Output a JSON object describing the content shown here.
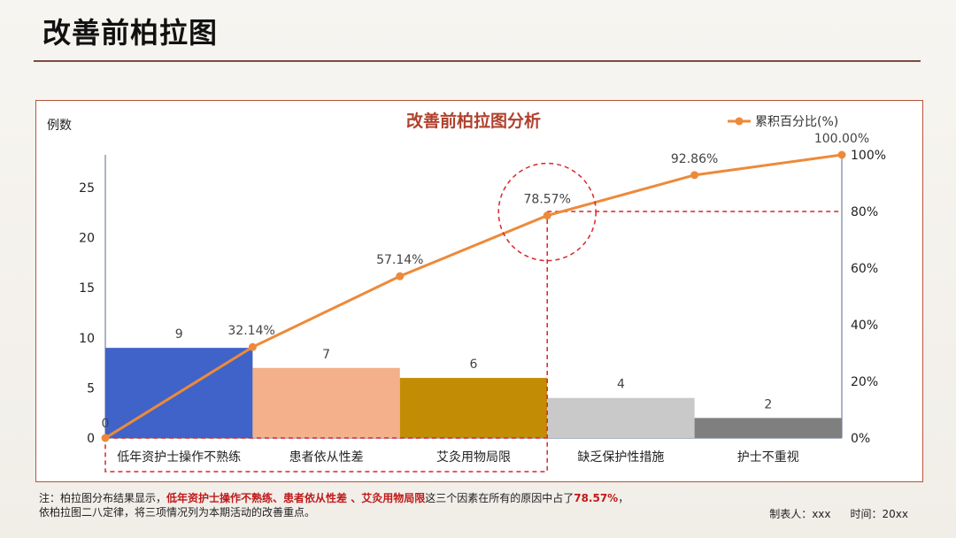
{
  "page": {
    "title": "改善前柏拉图"
  },
  "chart_data": {
    "type": "bar+line",
    "title": "改善前柏拉图分析",
    "ylabel_left": "例数",
    "categories": [
      "低年资护士操作不熟练",
      "患者依从性差",
      "艾灸用物局限",
      "缺乏保护性措施",
      "护士不重视"
    ],
    "values": [
      9,
      7,
      6,
      4,
      2
    ],
    "bar_colors": [
      "#3f63c8",
      "#f3b08a",
      "#c28d04",
      "#c9c9c9",
      "#7f7f7f"
    ],
    "cumulative": {
      "name": "累积百分比(%)",
      "color": "#ed8a3a",
      "x_labels": [
        "0",
        "32.14%",
        "57.14%",
        "78.57%",
        "92.86%",
        "100.00%"
      ],
      "values": [
        0,
        32.14,
        57.14,
        78.57,
        92.86,
        100.0
      ]
    },
    "ylim_left": [
      0,
      28
    ],
    "yticks_left": [
      "0",
      "5",
      "10",
      "15",
      "20",
      "25"
    ],
    "ylim_right": [
      0,
      100
    ],
    "yticks_right": [
      "0%",
      "20%",
      "40%",
      "60%",
      "80%",
      "100%"
    ],
    "reference_line": {
      "value": 80
    },
    "legend_position": "top-right"
  },
  "note": {
    "prefix": "注：柏拉图分布结果显示，",
    "highlight": "低年资护士操作不熟练、患者依从性差 、艾灸用物局限",
    "middle": "这三个因素在所有的原因中占了",
    "percent": "78.57%",
    "suffix": "，",
    "line2": "依柏拉图二八定律，将三项情况列为本期活动的改善重点。"
  },
  "footer": {
    "maker": "制表人：xxx",
    "time": "时间：20xx"
  }
}
